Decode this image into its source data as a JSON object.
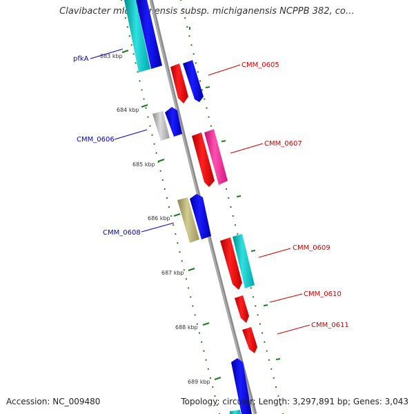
{
  "title": "Clavibacter michiganensis subsp. michiganensis NCPPB 382, co…",
  "footer": {
    "accession": "Accession: NC_009480",
    "summary": "Topology: circular; Length: 3,297,891 bp; Genes: 3,043"
  },
  "colors": {
    "backbone": "#8c8c8c",
    "tick": "#1a7a1a",
    "forward_label": "#cc0000",
    "reverse_label": "#0000cc",
    "red": "#ff0000",
    "blue": "#0000ee",
    "cyan": "#00c8c8",
    "magenta": "#ff2aa0",
    "gray": "#b4b4b4",
    "olive": "#b4ac6e"
  },
  "kbp_labels": [
    "683 kbp",
    "684 kbp",
    "685 kbp",
    "686 kbp",
    "687 kbp",
    "688 kbp",
    "689 kbp"
  ],
  "genes": [
    {
      "label": "pfkA",
      "side": "left"
    },
    {
      "label": "CMM_0605",
      "side": "right"
    },
    {
      "label": "CMM_0606",
      "side": "left"
    },
    {
      "label": "CMM_0607",
      "side": "right"
    },
    {
      "label": "CMM_0608",
      "side": "left"
    },
    {
      "label": "CMM_0609",
      "side": "right"
    },
    {
      "label": "CMM_0610",
      "side": "right"
    },
    {
      "label": "CMM_0611",
      "side": "right"
    }
  ]
}
